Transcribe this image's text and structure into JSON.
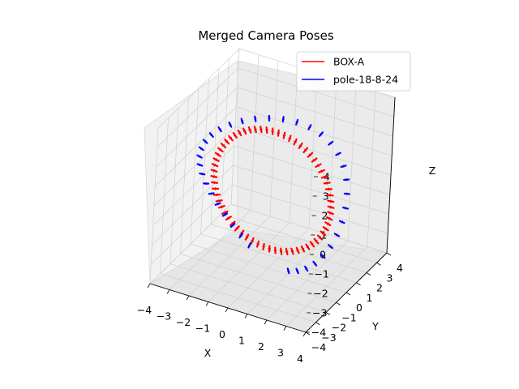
{
  "chart_data": {
    "type": "line",
    "projection": "3d",
    "title": "Merged Camera Poses",
    "xlabel": "X",
    "ylabel": "Y",
    "zlabel": "Z",
    "xlim": [
      -4,
      4
    ],
    "ylim": [
      -4,
      4
    ],
    "zlim": [
      -4,
      4
    ],
    "ticks": [
      "−4",
      "−3",
      "−2",
      "−1",
      "0",
      "1",
      "2",
      "3",
      "4"
    ],
    "grid": true,
    "legend_position": "top-right",
    "series": [
      {
        "name": "BOX-A",
        "color": "#ff0000",
        "ring_radius": 3.0,
        "ring_y": 0,
        "pose_count": 64,
        "visible_arc_deg": [
          -90,
          270
        ]
      },
      {
        "name": "pole-18-8-24",
        "color": "#0000ff",
        "ring_radius": 3.7,
        "ring_y": 0,
        "pose_count": 36,
        "visible_arc_deg": [
          -70,
          250
        ]
      }
    ]
  }
}
